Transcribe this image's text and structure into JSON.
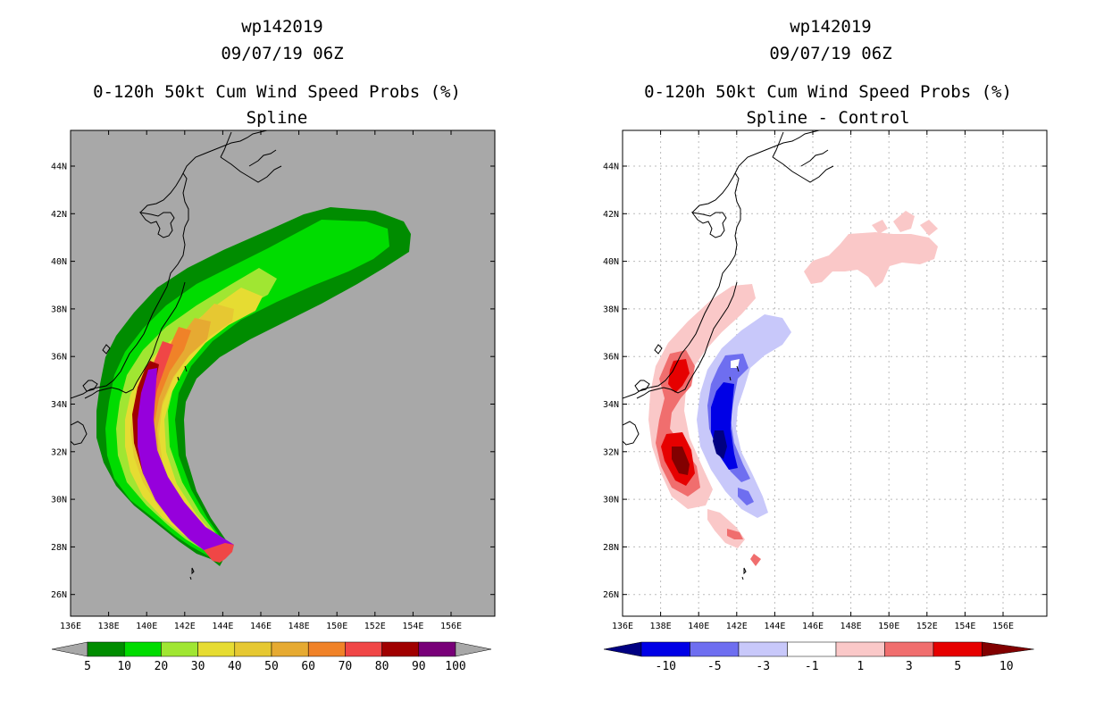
{
  "left_panel": {
    "title_line1": "wp142019",
    "title_line2": "09/07/19 06Z",
    "title_line3": "0-120h 50kt Cum Wind Speed Probs (%)",
    "title_line4": "Spline",
    "colorbar_labels": [
      "5",
      "10",
      "20",
      "30",
      "40",
      "50",
      "60",
      "70",
      "80",
      "90",
      "100"
    ],
    "colorbar_colors": [
      "#008c00",
      "#00dc00",
      "#a0e632",
      "#e6dc32",
      "#e6c832",
      "#e6aa32",
      "#f08228",
      "#f04646",
      "#a00000",
      "#780078",
      "#9600dc"
    ]
  },
  "right_panel": {
    "title_line1": "wp142019",
    "title_line2": "09/07/19 06Z",
    "title_line3": "0-120h 50kt Cum Wind Speed Probs (%)",
    "title_line4": "Spline - Control",
    "colorbar_labels": [
      "-10",
      "-5",
      "-3",
      "-1",
      "1",
      "3",
      "5",
      "10"
    ],
    "colorbar_colors": [
      "#000082",
      "#0000e6",
      "#6e6ef0",
      "#c8c8fa",
      "#ffffff",
      "#fac8c8",
      "#f06e6e",
      "#e60000",
      "#820000"
    ]
  },
  "axes": {
    "lat_labels": [
      "44N",
      "42N",
      "40N",
      "38N",
      "36N",
      "34N",
      "32N",
      "30N",
      "28N",
      "26N"
    ],
    "lon_labels": [
      "136E",
      "138E",
      "140E",
      "142E",
      "144E",
      "146E",
      "148E",
      "150E",
      "152E",
      "154E",
      "156E"
    ]
  },
  "colors": {
    "ocean_left": "#a8a8a8",
    "ocean_right": "#ffffff",
    "coast": "#000000"
  }
}
